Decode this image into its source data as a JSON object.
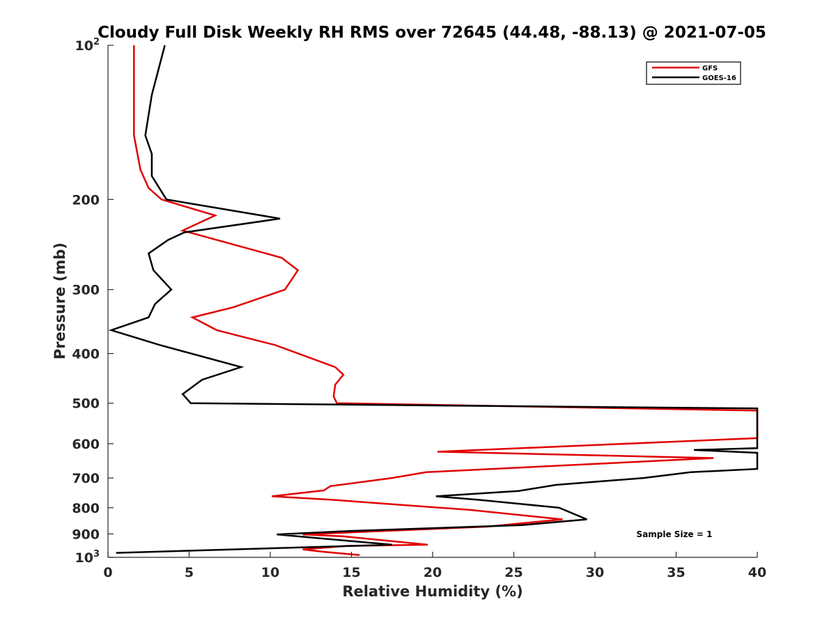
{
  "chart_data": {
    "type": "line",
    "title": "Cloudy Full Disk Weekly RH RMS over 72645 (44.48, -88.13) @ 2021-07-05",
    "xlabel": "Relative Humidity (%)",
    "ylabel": "Pressure (mb)",
    "xlim": [
      0,
      40
    ],
    "ylim": [
      100,
      1000
    ],
    "y_scale": "log",
    "y_reversed": true,
    "grid": false,
    "legend_position": "top-right",
    "x_ticks": [
      "0",
      "5",
      "10",
      "15",
      "20",
      "25",
      "30",
      "35",
      "40"
    ],
    "x_tick_values": [
      0,
      5,
      10,
      15,
      20,
      25,
      30,
      35,
      40
    ],
    "y_ticks": [
      {
        "value": 100,
        "base": "10",
        "exp": "2"
      },
      {
        "value": 200,
        "label": "200"
      },
      {
        "value": 300,
        "label": "300"
      },
      {
        "value": 400,
        "label": "400"
      },
      {
        "value": 500,
        "label": "500"
      },
      {
        "value": 600,
        "label": "600"
      },
      {
        "value": 700,
        "label": "700"
      },
      {
        "value": 800,
        "label": "800"
      },
      {
        "value": 900,
        "label": "900"
      },
      {
        "value": 1000,
        "base": "10",
        "exp": "3"
      }
    ],
    "annotation": "Sample Size = 1",
    "series": [
      {
        "name": "GFS",
        "color": "#e00000",
        "points": [
          [
            1.6,
            100
          ],
          [
            1.6,
            150
          ],
          [
            2.0,
            175
          ],
          [
            2.5,
            190
          ],
          [
            3.3,
            200
          ],
          [
            6.6,
            215
          ],
          [
            4.6,
            230
          ],
          [
            10.7,
            260
          ],
          [
            11.7,
            275
          ],
          [
            10.9,
            300
          ],
          [
            7.7,
            325
          ],
          [
            5.2,
            340
          ],
          [
            6.7,
            360
          ],
          [
            10.3,
            385
          ],
          [
            14.0,
            425
          ],
          [
            14.5,
            440
          ],
          [
            14.0,
            460
          ],
          [
            13.9,
            485
          ],
          [
            14.1,
            500
          ],
          [
            40,
            517
          ],
          [
            40,
            585
          ],
          [
            20.3,
            622
          ],
          [
            37.3,
            640
          ],
          [
            19.6,
            682
          ],
          [
            17.5,
            700
          ],
          [
            13.7,
            726
          ],
          [
            13.3,
            740
          ],
          [
            10.1,
            760
          ],
          [
            13.8,
            772
          ],
          [
            22.3,
            808
          ],
          [
            28.0,
            843
          ],
          [
            23.4,
            871
          ],
          [
            12.0,
            902
          ],
          [
            14.5,
            910
          ],
          [
            19.7,
            945
          ],
          [
            14.7,
            950
          ],
          [
            12.0,
            965
          ],
          [
            13.2,
            975
          ],
          [
            15.5,
            990
          ]
        ]
      },
      {
        "name": "GOES-16",
        "color": "#000000",
        "points": [
          [
            3.5,
            100
          ],
          [
            2.7,
            125
          ],
          [
            2.3,
            150
          ],
          [
            2.7,
            163
          ],
          [
            2.7,
            180
          ],
          [
            3.6,
            200
          ],
          [
            10.6,
            218
          ],
          [
            4.7,
            232
          ],
          [
            3.7,
            240
          ],
          [
            2.5,
            255
          ],
          [
            2.8,
            275
          ],
          [
            3.9,
            300
          ],
          [
            2.9,
            320
          ],
          [
            2.5,
            340
          ],
          [
            0.2,
            360
          ],
          [
            3.2,
            385
          ],
          [
            8.2,
            425
          ],
          [
            5.8,
            450
          ],
          [
            4.6,
            480
          ],
          [
            5.1,
            500
          ],
          [
            40,
            512
          ],
          [
            40,
            612
          ],
          [
            36.1,
            617
          ],
          [
            40,
            625
          ],
          [
            40,
            672
          ],
          [
            35.9,
            682
          ],
          [
            33.0,
            700
          ],
          [
            27.6,
            722
          ],
          [
            25.3,
            742
          ],
          [
            20.2,
            760
          ],
          [
            22.8,
            772
          ],
          [
            27.8,
            800
          ],
          [
            29.5,
            843
          ],
          [
            25.5,
            865
          ],
          [
            15.0,
            888
          ],
          [
            10.4,
            902
          ],
          [
            17.5,
            945
          ],
          [
            0.5,
            980
          ]
        ]
      }
    ]
  }
}
